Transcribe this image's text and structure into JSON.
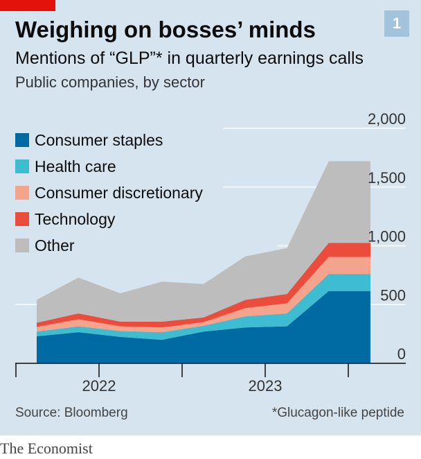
{
  "header": {
    "title": "Weighing on bosses’ minds",
    "subtitle": "Mentions of “GLP”* in quarterly earnings calls",
    "subsubtitle": "Public companies, by sector",
    "badge": "1"
  },
  "footer": {
    "source": "Source: Bloomberg",
    "footnote": "*Glucagon-like peptide",
    "brand": "The Economist"
  },
  "colors": {
    "background": "#d5e4ef",
    "brand_red": "#e3120b",
    "consumer_staples": "#006ba2",
    "health_care": "#3ebcd2",
    "consumer_discretionary": "#f4a48d",
    "technology": "#eb4c3c",
    "other": "#bdbdbd"
  },
  "chart_data": {
    "type": "area",
    "stacked": true,
    "x": [
      "2021-Q3",
      "2021-Q4",
      "2022-Q1",
      "2022-Q2",
      "2022-Q3",
      "2022-Q4",
      "2023-Q1",
      "2023-Q2",
      "2023-Q3"
    ],
    "x_tick_labels": [
      "2022",
      "2023"
    ],
    "ylim": [
      0,
      2000
    ],
    "y_ticks": [
      "2,000",
      "1,500",
      "1,000",
      "500",
      "0"
    ],
    "y_tick_values": [
      2000,
      1500,
      1000,
      500,
      0
    ],
    "legend_position": "top-left",
    "grid": true,
    "series": [
      {
        "name": "Consumer staples",
        "values": [
          230,
          265,
          225,
          200,
          270,
          305,
          315,
          615,
          615
        ],
        "color": "#006ba2"
      },
      {
        "name": "Health care",
        "values": [
          40,
          50,
          50,
          65,
          50,
          95,
          110,
          145,
          145
        ],
        "color": "#3ebcd2"
      },
      {
        "name": "Consumer discretionary",
        "values": [
          40,
          60,
          40,
          40,
          30,
          70,
          85,
          145,
          145
        ],
        "color": "#f4a48d"
      },
      {
        "name": "Technology",
        "values": [
          35,
          50,
          40,
          50,
          40,
          70,
          80,
          120,
          120
        ],
        "color": "#eb4c3c"
      },
      {
        "name": "Other",
        "values": [
          195,
          305,
          240,
          340,
          285,
          370,
          390,
          695,
          695
        ],
        "color": "#bdbdbd"
      }
    ]
  }
}
